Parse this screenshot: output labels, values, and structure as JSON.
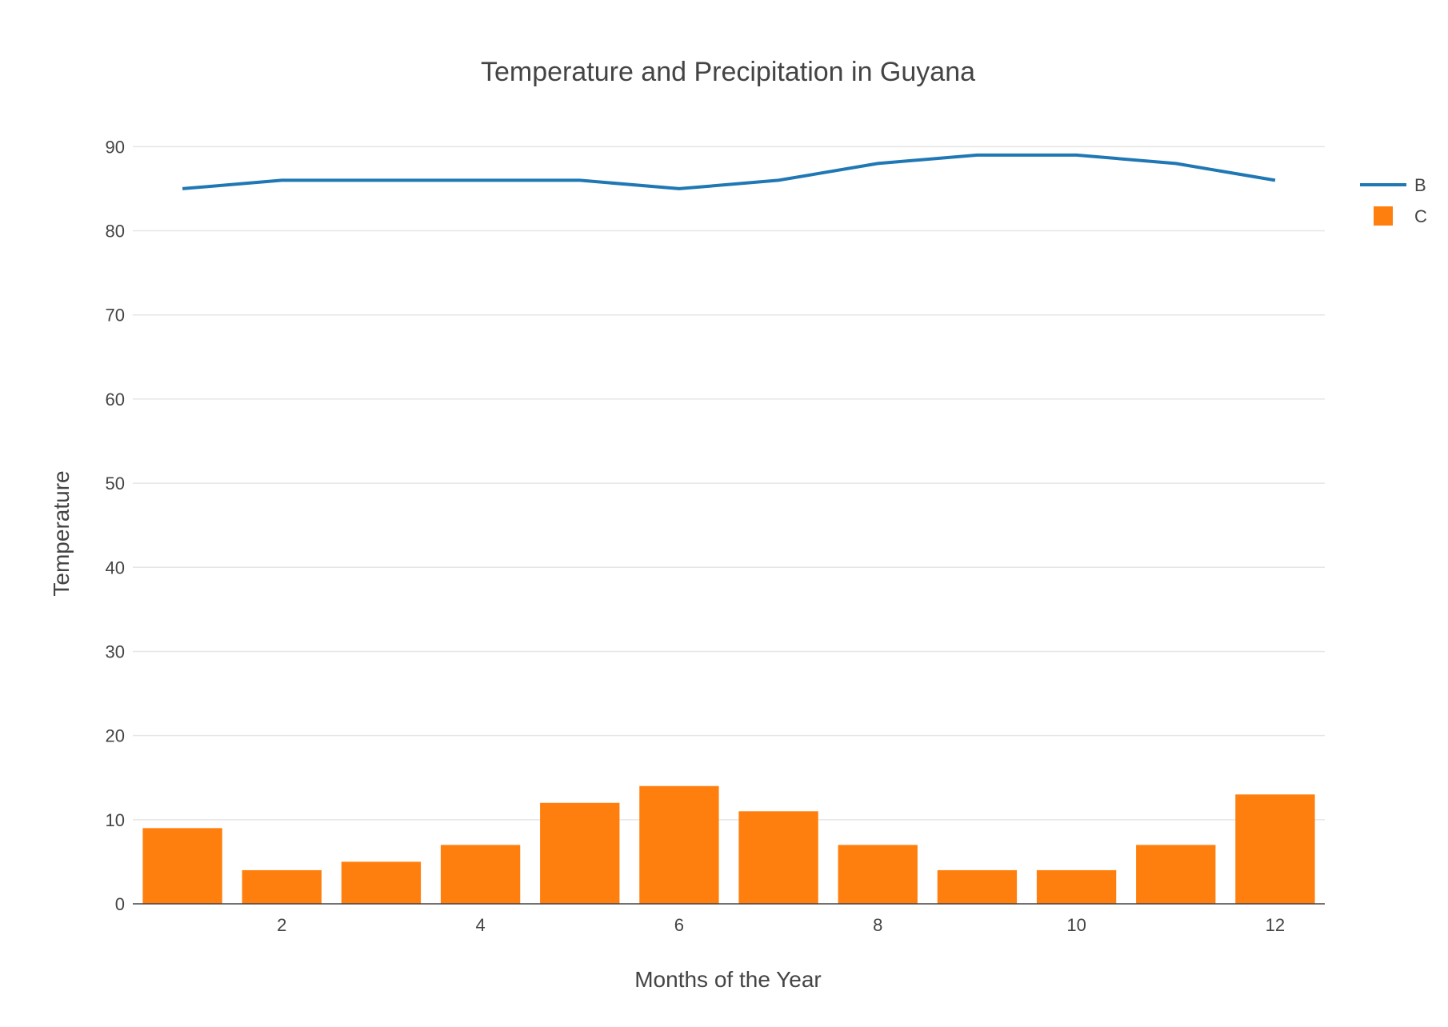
{
  "chart_data": {
    "type": "bar",
    "title": "Temperature and Precipitation in Guyana",
    "xlabel": "Months of the Year",
    "ylabel": "Temperature",
    "x": [
      1,
      2,
      3,
      4,
      5,
      6,
      7,
      8,
      9,
      10,
      11,
      12
    ],
    "xlim": [
      0.5,
      12.5
    ],
    "ylim": [
      0,
      90
    ],
    "xticks": [
      2,
      4,
      6,
      8,
      10,
      12
    ],
    "yticks": [
      0,
      10,
      20,
      30,
      40,
      50,
      60,
      70,
      80,
      90
    ],
    "grid": true,
    "legend_position": "top-right",
    "series": [
      {
        "name": "B",
        "type": "line",
        "color": "#1f77b4",
        "values": [
          85,
          86,
          86,
          86,
          86,
          85,
          86,
          88,
          89,
          89,
          88,
          86
        ]
      },
      {
        "name": "C",
        "type": "bar",
        "color": "#ff7f0e",
        "values": [
          9,
          4,
          5,
          7,
          12,
          14,
          11,
          7,
          4,
          4,
          7,
          13
        ]
      }
    ]
  }
}
